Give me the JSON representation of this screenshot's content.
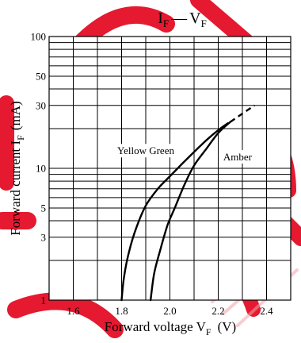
{
  "chart_data": {
    "type": "line",
    "title": "I_F — V_F",
    "title_parts": {
      "left_main": "I",
      "left_sub": "F",
      "dash": "—",
      "right_main": "V",
      "right_sub": "F"
    },
    "xlabel_parts": {
      "main": "Forward voltage  V",
      "sub": "F",
      "unit": "(V)"
    },
    "ylabel_parts": {
      "main": "Forward current  I",
      "sub": "F",
      "unit": "(mA)"
    },
    "xlim": [
      1.5,
      2.5
    ],
    "ylim": [
      1,
      100
    ],
    "y_scale": "log",
    "grid": true,
    "x_ticks": [
      {
        "value": 1.6,
        "label": "1.6"
      },
      {
        "value": 1.8,
        "label": "1.8"
      },
      {
        "value": 2.0,
        "label": "2.0"
      },
      {
        "value": 2.2,
        "label": "2.2"
      },
      {
        "value": 2.4,
        "label": "2.4"
      }
    ],
    "y_ticks": [
      {
        "value": 1,
        "label": "1"
      },
      {
        "value": 3,
        "label": "3"
      },
      {
        "value": 5,
        "label": "5"
      },
      {
        "value": 10,
        "label": "10"
      },
      {
        "value": 30,
        "label": "30"
      },
      {
        "value": 50,
        "label": "50"
      },
      {
        "value": 100,
        "label": "100"
      }
    ],
    "y_gridlines": [
      1,
      2,
      3,
      4,
      5,
      6,
      7,
      8,
      9,
      10,
      20,
      30,
      40,
      50,
      60,
      70,
      80,
      90,
      100
    ],
    "x_gridlines": [
      1.5,
      1.6,
      1.7,
      1.8,
      1.9,
      2.0,
      2.1,
      2.2,
      2.3,
      2.4,
      2.5
    ],
    "series": [
      {
        "name": "Yellow Green",
        "points": [
          [
            1.8,
            1
          ],
          [
            1.81,
            1.5
          ],
          [
            1.83,
            2.3
          ],
          [
            1.86,
            3.5
          ],
          [
            1.9,
            5.2
          ],
          [
            1.95,
            7
          ],
          [
            2.0,
            8.7
          ],
          [
            2.05,
            10.8
          ],
          [
            2.1,
            13.3
          ],
          [
            2.15,
            16.3
          ],
          [
            2.2,
            19.5
          ],
          [
            2.24,
            22
          ]
        ],
        "dashed_extension": []
      },
      {
        "name": "Amber",
        "points": [
          [
            1.92,
            1
          ],
          [
            1.935,
            1.6
          ],
          [
            1.96,
            2.4
          ],
          [
            1.99,
            3.7
          ],
          [
            2.02,
            5
          ],
          [
            2.06,
            7.5
          ],
          [
            2.1,
            10.5
          ],
          [
            2.15,
            14
          ],
          [
            2.2,
            18.5
          ],
          [
            2.25,
            22.5
          ]
        ],
        "dashed_extension": [
          [
            2.25,
            22.5
          ],
          [
            2.3,
            26
          ],
          [
            2.35,
            30
          ]
        ]
      }
    ],
    "colors": {
      "curve": "#000000",
      "watermark": "#e2001a"
    }
  }
}
